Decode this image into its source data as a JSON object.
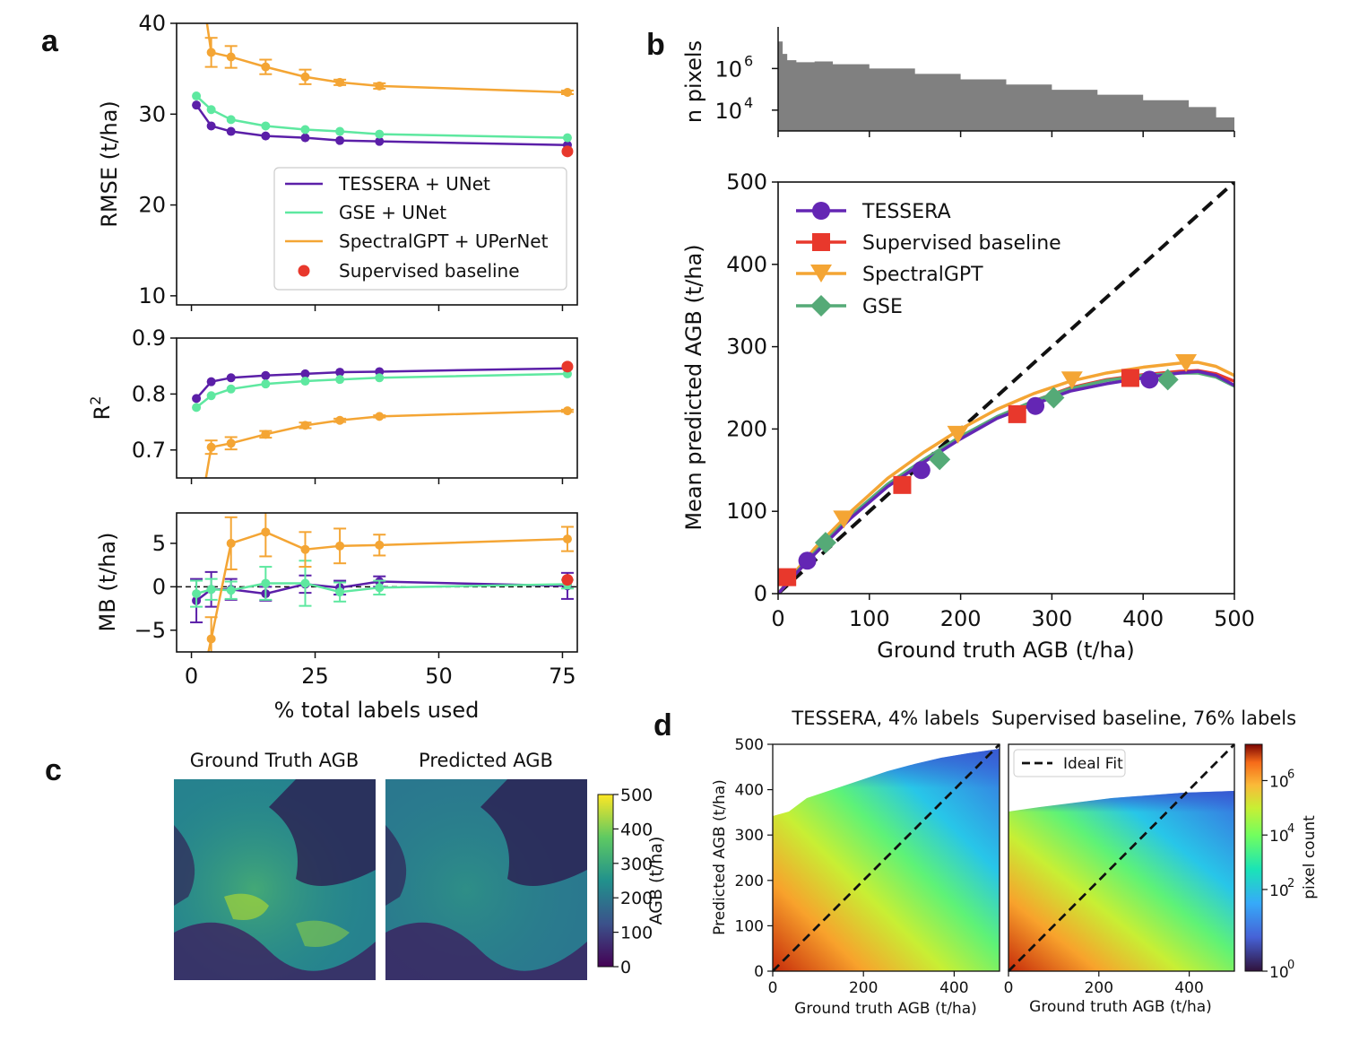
{
  "panel_labels": [
    "a",
    "b",
    "c",
    "d"
  ],
  "chart_data": [
    {
      "id": "a_rmse",
      "type": "line",
      "ylabel": "RMSE (t/ha)",
      "xlim": [
        -3,
        78
      ],
      "ylim": [
        9,
        40
      ],
      "yticks": [
        10,
        20,
        30,
        40
      ],
      "legend_position": "lower-right",
      "series": [
        {
          "name": "TESSERA + UNet",
          "color": "#5b1fa8",
          "x": [
            1,
            4,
            8,
            15,
            23,
            30,
            38,
            76
          ],
          "y": [
            31.0,
            28.7,
            28.1,
            27.6,
            27.4,
            27.1,
            27.0,
            26.6
          ]
        },
        {
          "name": "GSE + UNet",
          "color": "#5ee8a0",
          "x": [
            1,
            4,
            8,
            15,
            23,
            30,
            38,
            76
          ],
          "y": [
            32.0,
            30.5,
            29.4,
            28.7,
            28.3,
            28.1,
            27.8,
            27.4
          ]
        },
        {
          "name": "SpectralGPT + UPerNet",
          "color": "#f4a534",
          "x": [
            1,
            4,
            8,
            15,
            23,
            30,
            38,
            76
          ],
          "y": [
            48.0,
            36.8,
            36.3,
            35.2,
            34.1,
            33.5,
            33.1,
            32.4
          ],
          "err": [
            6,
            1.6,
            1.2,
            0.8,
            0.8,
            0.3,
            0.3,
            0.2
          ]
        },
        {
          "name": "Supervised baseline",
          "color": "#e8382c",
          "marker_only": true,
          "x": [
            76
          ],
          "y": [
            25.9
          ]
        }
      ]
    },
    {
      "id": "a_r2",
      "type": "line",
      "ylabel": "R²",
      "ylabel_base": "R",
      "ylabel_sup": "2",
      "xlim": [
        -3,
        78
      ],
      "ylim": [
        0.65,
        0.9
      ],
      "yticks": [
        0.7,
        0.8,
        0.9
      ],
      "ytick_labels": [
        "0.7",
        "0.8",
        "0.9"
      ],
      "series": [
        {
          "name": "TESSERA + UNet",
          "color": "#5b1fa8",
          "x": [
            1,
            4,
            8,
            15,
            23,
            30,
            38,
            76
          ],
          "y": [
            0.792,
            0.822,
            0.829,
            0.833,
            0.836,
            0.839,
            0.84,
            0.846
          ]
        },
        {
          "name": "GSE + UNet",
          "color": "#5ee8a0",
          "x": [
            1,
            4,
            8,
            15,
            23,
            30,
            38,
            76
          ],
          "y": [
            0.776,
            0.797,
            0.809,
            0.818,
            0.823,
            0.826,
            0.829,
            0.836
          ]
        },
        {
          "name": "SpectralGPT + UPerNet",
          "color": "#f4a534",
          "x": [
            1,
            4,
            8,
            15,
            23,
            30,
            38,
            76
          ],
          "y": [
            0.55,
            0.705,
            0.712,
            0.728,
            0.744,
            0.753,
            0.76,
            0.77
          ],
          "err": [
            0.05,
            0.012,
            0.011,
            0.006,
            0.005,
            0.003,
            0.002,
            0.002
          ]
        },
        {
          "name": "Supervised baseline",
          "color": "#e8382c",
          "marker_only": true,
          "x": [
            76
          ],
          "y": [
            0.849
          ]
        }
      ]
    },
    {
      "id": "a_mb",
      "type": "line",
      "ylabel": "MB (t/ha)",
      "xlabel": "% total labels used",
      "xlim": [
        -3,
        78
      ],
      "ylim": [
        -7.5,
        8.5
      ],
      "yticks": [
        -5,
        0,
        5
      ],
      "ytick_labels": [
        "−5",
        "0",
        "5"
      ],
      "xticks": [
        0,
        25,
        50,
        75
      ],
      "series": [
        {
          "name": "TESSERA + UNet",
          "color": "#5b1fa8",
          "x": [
            1,
            4,
            8,
            15,
            23,
            30,
            38,
            76
          ],
          "y": [
            -1.6,
            -0.3,
            -0.3,
            -0.8,
            0.3,
            -0.1,
            0.6,
            0.1
          ],
          "err": [
            2.5,
            2.0,
            1.2,
            0.8,
            1.0,
            0.8,
            0.6,
            1.5
          ]
        },
        {
          "name": "GSE + UNet",
          "color": "#5ee8a0",
          "x": [
            1,
            4,
            8,
            15,
            23,
            30,
            38,
            76
          ],
          "y": [
            -0.8,
            -0.3,
            -0.4,
            0.4,
            0.4,
            -0.6,
            -0.1,
            0.3
          ],
          "err": [
            1.5,
            1.2,
            1.0,
            1.9,
            2.6,
            1.1,
            0.8,
            0.5
          ]
        },
        {
          "name": "SpectralGPT + UPerNet",
          "color": "#f4a534",
          "x": [
            1,
            4,
            8,
            15,
            23,
            30,
            38,
            76
          ],
          "y": [
            -14,
            -6.0,
            5.0,
            6.3,
            4.3,
            4.7,
            4.8,
            5.5
          ],
          "err": [
            3,
            2.5,
            3.0,
            2.8,
            2.0,
            2.0,
            1.2,
            1.4
          ]
        },
        {
          "name": "Supervised baseline",
          "color": "#e8382c",
          "marker_only": true,
          "x": [
            76
          ],
          "y": [
            0.8
          ]
        }
      ]
    },
    {
      "id": "b_hist",
      "type": "bar",
      "ylabel": "n pixels",
      "y_scale": "log",
      "yticks": [
        10000,
        1000000
      ],
      "ytick_base": "10",
      "ytick_exps": [
        "4",
        "6"
      ],
      "ylim": [
        1000,
        100000000
      ],
      "xlim": [
        0,
        500
      ],
      "bin_edges": [
        0,
        5,
        10,
        20,
        40,
        60,
        100,
        150,
        200,
        250,
        300,
        350,
        400,
        450,
        480,
        500
      ],
      "counts": [
        20000000,
        5000000,
        2500000,
        2000000,
        2200000,
        1600000,
        1000000,
        550000,
        300000,
        170000,
        95000,
        55000,
        30000,
        14000,
        4500
      ]
    },
    {
      "id": "b_main",
      "type": "line",
      "xlabel": "Ground truth AGB (t/ha)",
      "ylabel": "Mean predicted AGB (t/ha)",
      "xlim": [
        0,
        500
      ],
      "ylim": [
        0,
        500
      ],
      "xticks": [
        0,
        100,
        200,
        300,
        400,
        500
      ],
      "yticks": [
        0,
        100,
        200,
        300,
        400,
        500
      ],
      "legend_position": "upper-left",
      "identity_line": true,
      "series": [
        {
          "name": "TESSERA",
          "color": "#6426b4",
          "marker": "circle",
          "x": [
            0,
            20,
            40,
            80,
            120,
            160,
            200,
            240,
            280,
            320,
            360,
            400,
            440,
            460,
            480,
            500
          ],
          "y": [
            0,
            25,
            48,
            92,
            130,
            160,
            188,
            213,
            230,
            246,
            255,
            262,
            268,
            270,
            265,
            253
          ],
          "marker_x": [
            32,
            157,
            282,
            407
          ],
          "marker_y": [
            40,
            150,
            228,
            260
          ]
        },
        {
          "name": "Supervised baseline",
          "color": "#e8382c",
          "marker": "square",
          "x": [
            0,
            20,
            40,
            80,
            120,
            160,
            200,
            240,
            280,
            320,
            360,
            400,
            440,
            460,
            480,
            500
          ],
          "y": [
            0,
            25,
            48,
            93,
            132,
            162,
            190,
            214,
            234,
            250,
            260,
            266,
            270,
            271,
            267,
            258
          ],
          "marker_x": [
            10,
            136,
            262,
            386
          ],
          "marker_y": [
            20,
            132,
            218,
            262
          ]
        },
        {
          "name": "SpectralGPT",
          "color": "#f4a534",
          "marker": "triangle-down",
          "x": [
            0,
            20,
            40,
            80,
            120,
            160,
            200,
            240,
            280,
            320,
            360,
            400,
            440,
            460,
            480,
            500
          ],
          "y": [
            0,
            28,
            55,
            100,
            140,
            172,
            200,
            224,
            243,
            258,
            268,
            275,
            280,
            281,
            276,
            265
          ],
          "marker_x": [
            72,
            197,
            322,
            447
          ],
          "marker_y": [
            90,
            193,
            259,
            280
          ]
        },
        {
          "name": "GSE",
          "color": "#55aa77",
          "marker": "diamond",
          "x": [
            0,
            20,
            40,
            80,
            120,
            160,
            200,
            240,
            280,
            320,
            360,
            400,
            440,
            460,
            480,
            500
          ],
          "y": [
            0,
            26,
            50,
            95,
            133,
            163,
            191,
            215,
            234,
            249,
            259,
            265,
            268,
            268,
            263,
            252
          ],
          "marker_x": [
            52,
            177,
            302,
            427
          ],
          "marker_y": [
            62,
            163,
            238,
            260
          ]
        }
      ]
    },
    {
      "id": "c_maps",
      "type": "heatmap",
      "titles": [
        "Ground Truth AGB",
        "Predicted AGB"
      ],
      "colorbar_label": "AGB (t/ha)",
      "colorbar_ticks": [
        0,
        100,
        200,
        300,
        400,
        500
      ],
      "colormap": "viridis"
    },
    {
      "id": "d_density",
      "type": "heatmap",
      "titles": [
        "TESSERA, 4% labels",
        "Supervised baseline, 76% labels"
      ],
      "xlabel": "Ground truth AGB (t/ha)",
      "ylabel": "Predicted AGB (t/ha)",
      "xlim": [
        0,
        500
      ],
      "ylim": [
        0,
        500
      ],
      "xticks": [
        0,
        200,
        400
      ],
      "yticks": [
        0,
        100,
        200,
        300,
        400,
        500
      ],
      "legend_entry": "Ideal Fit",
      "colorbar_label": "pixel count",
      "colorbar_scale": "log",
      "colorbar_base": "10",
      "colorbar_exps": [
        "0",
        "2",
        "4",
        "6"
      ],
      "colormap": "turbo"
    }
  ]
}
